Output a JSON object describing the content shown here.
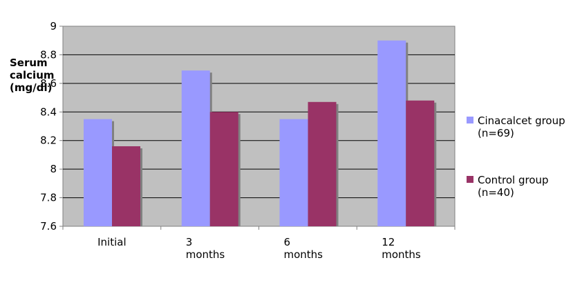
{
  "chart_data": {
    "type": "bar",
    "categories": [
      "Initial",
      "3\nmonths",
      "6\nmonths",
      "12\nmonths"
    ],
    "series": [
      {
        "name": "Cinacalcet group\n(n=69)",
        "color": "#9999ff",
        "values": [
          8.35,
          8.69,
          8.35,
          8.9
        ]
      },
      {
        "name": "Control group\n(n=40)",
        "color": "#993366",
        "values": [
          8.16,
          8.4,
          8.47,
          8.48
        ]
      }
    ],
    "ylabel": "Serum\ncalcium\n(mg/dl)",
    "ylim": [
      7.6,
      9
    ],
    "yticks": [
      "7.6",
      "7.8",
      "8",
      "8.2",
      "8.4",
      "8.6",
      "8.8",
      "9"
    ],
    "grid": true,
    "legend_position": "right",
    "plot_background": "#c0c0c0"
  }
}
